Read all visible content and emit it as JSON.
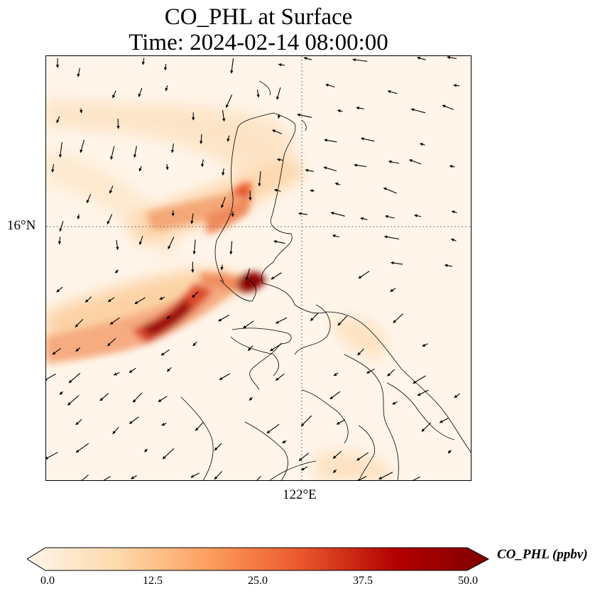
{
  "title": {
    "line1": "CO_PHL at Surface",
    "line2": "Time: 2024-02-14 08:00:00"
  },
  "map": {
    "lat_label": "16°N",
    "lon_label": "122°E",
    "background_color": "#fff5ea",
    "coastline_color": "#000000",
    "gridline_style": "dotted"
  },
  "colorbar": {
    "label": "CO_PHL (ppbv)",
    "ticks": [
      "0.0",
      "12.5",
      "25.0",
      "37.5",
      "50.0"
    ],
    "min": 0,
    "max": 50,
    "extend": "both",
    "colormap": [
      "#fff5eb",
      "#fdd9a9",
      "#fd9c5c",
      "#e8552a",
      "#b30000",
      "#7f0000"
    ]
  }
}
